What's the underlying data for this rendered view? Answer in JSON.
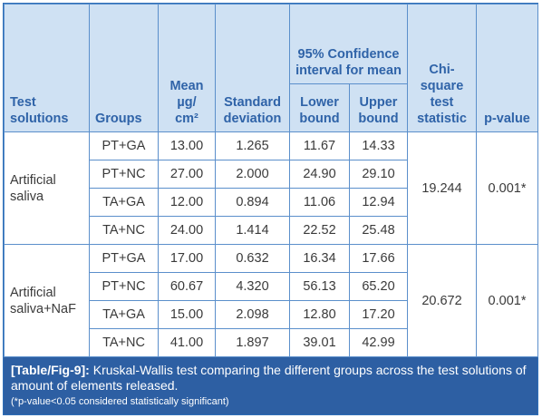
{
  "headers": {
    "test_solutions": "Test solutions",
    "groups": "Groups",
    "mean": "Mean µg/ cm²",
    "sd": "Standard deviation",
    "ci": "95% Confidence interval for mean",
    "lower": "Lower bound",
    "upper": "Upper bound",
    "chi": "Chi-square test statistic",
    "p": "p-value"
  },
  "blocks": [
    {
      "solution": "Artificial saliva",
      "chi": "19.244",
      "p": "0.001*",
      "rows": [
        {
          "group": "PT+GA",
          "mean": "13.00",
          "sd": "1.265",
          "lower": "11.67",
          "upper": "14.33"
        },
        {
          "group": "PT+NC",
          "mean": "27.00",
          "sd": "2.000",
          "lower": "24.90",
          "upper": "29.10"
        },
        {
          "group": "TA+GA",
          "mean": "12.00",
          "sd": "0.894",
          "lower": "11.06",
          "upper": "12.94"
        },
        {
          "group": "TA+NC",
          "mean": "24.00",
          "sd": "1.414",
          "lower": "22.52",
          "upper": "25.48"
        }
      ]
    },
    {
      "solution": "Artificial saliva+NaF",
      "chi": "20.672",
      "p": "0.001*",
      "rows": [
        {
          "group": "PT+GA",
          "mean": "17.00",
          "sd": "0.632",
          "lower": "16.34",
          "upper": "17.66"
        },
        {
          "group": "PT+NC",
          "mean": "60.67",
          "sd": "4.320",
          "lower": "56.13",
          "upper": "65.20"
        },
        {
          "group": "TA+GA",
          "mean": "15.00",
          "sd": "2.098",
          "lower": "12.80",
          "upper": "17.20"
        },
        {
          "group": "TA+NC",
          "mean": "41.00",
          "sd": "1.897",
          "lower": "39.01",
          "upper": "42.99"
        }
      ]
    }
  ],
  "caption": {
    "label": "[Table/Fig-9]:",
    "text": " Kruskal-Wallis test comparing the different groups across the test solutions of amount of elements released.",
    "note": "(*p-value<0.05 considered statistically significant)"
  }
}
